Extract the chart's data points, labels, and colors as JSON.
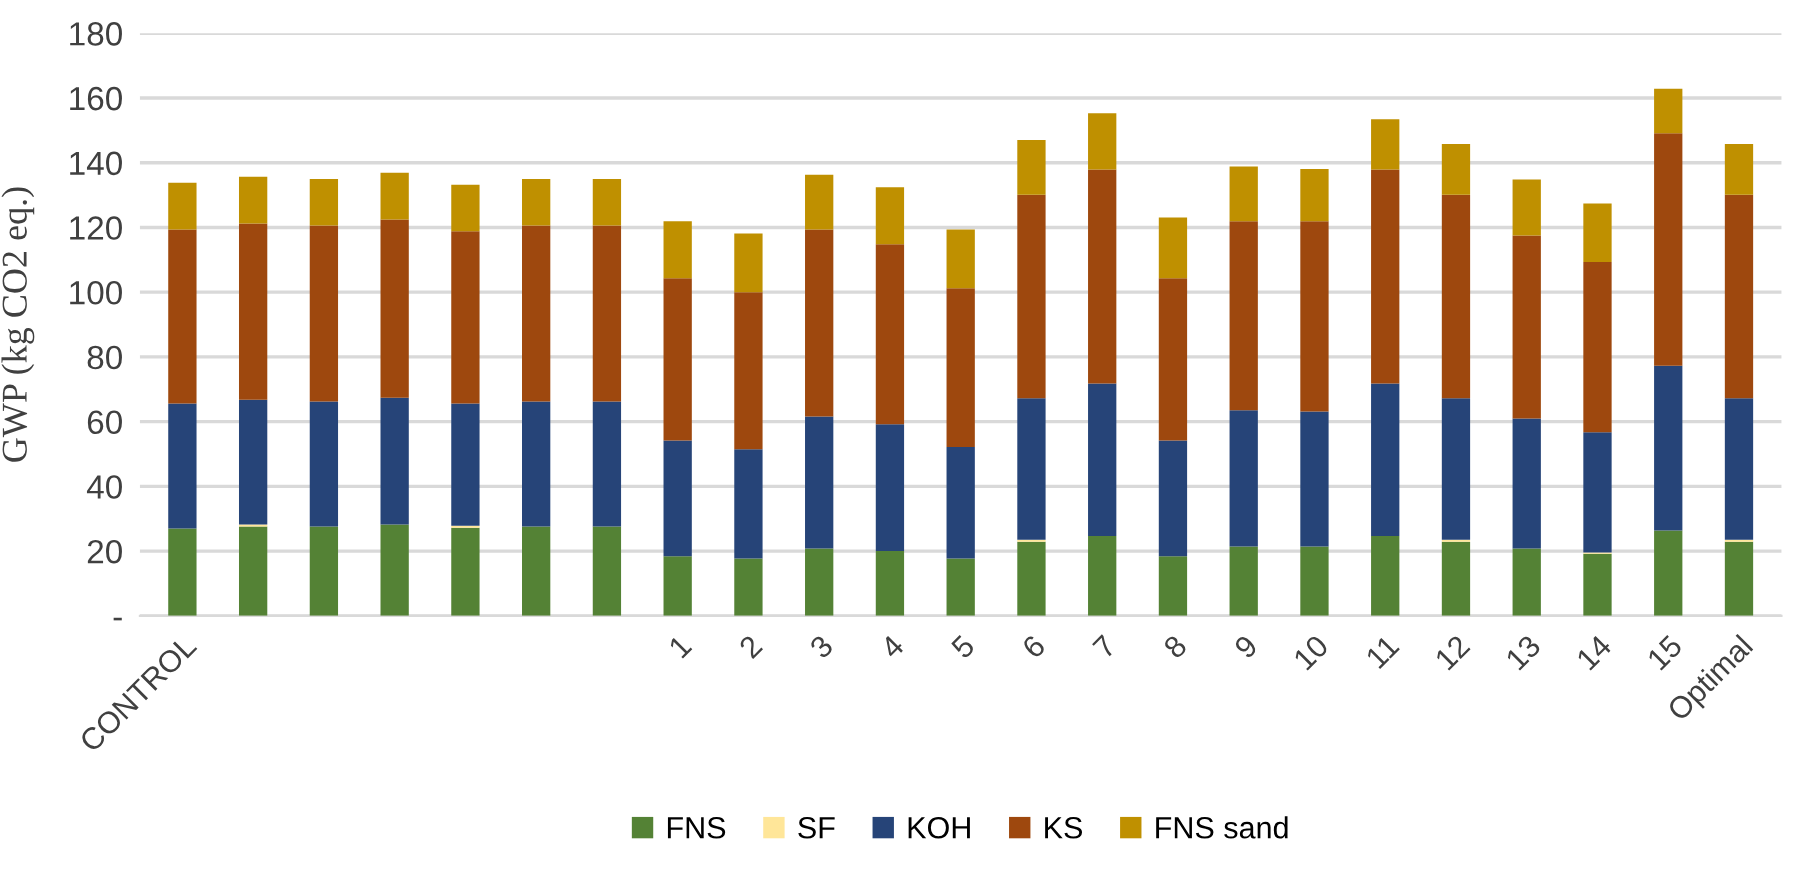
{
  "chart_data": {
    "type": "bar",
    "stacked": true,
    "ylabel": "GWP (kg CO2 eq.)",
    "categories": [
      "CONTROL",
      null,
      null,
      null,
      null,
      null,
      null,
      "1",
      "2",
      "3",
      "4",
      "5",
      "6",
      "7",
      "8",
      "9",
      "10",
      "11",
      "12",
      "13",
      "14",
      "15",
      "Optimal"
    ],
    "series": [
      {
        "name": "FNS",
        "color": "#548235",
        "values": [
          27.0,
          27.6,
          27.6,
          28.2,
          27.2,
          27.6,
          27.6,
          18.4,
          17.7,
          20.8,
          20.0,
          17.7,
          22.9,
          24.7,
          18.4,
          21.4,
          21.4,
          24.7,
          22.9,
          20.8,
          19.2,
          26.4,
          22.9
        ]
      },
      {
        "name": "SF",
        "color": "#ffe699",
        "values": [
          0,
          0.6,
          0,
          0,
          0.6,
          0,
          0,
          0,
          0,
          0,
          0,
          0,
          0.6,
          0,
          0,
          0,
          0,
          0,
          0.6,
          0,
          0.4,
          0,
          0.6
        ]
      },
      {
        "name": "KOH",
        "color": "#264478",
        "values": [
          38.6,
          38.6,
          38.6,
          39.2,
          37.8,
          38.6,
          38.6,
          35.8,
          33.8,
          40.8,
          39.2,
          34.5,
          43.7,
          47.1,
          35.8,
          42.1,
          41.7,
          47.1,
          43.7,
          40.2,
          37.1,
          50.9,
          43.7
        ]
      },
      {
        "name": "KS",
        "color": "#9e480e",
        "values": [
          53.8,
          54.4,
          54.4,
          55.1,
          53.2,
          54.4,
          54.4,
          50.1,
          48.5,
          57.8,
          55.6,
          49.0,
          62.9,
          66.1,
          50.1,
          58.4,
          58.8,
          66.1,
          62.9,
          56.5,
          52.6,
          71.8,
          62.9
        ]
      },
      {
        "name": "FNS sand",
        "color": "#bf9000",
        "values": [
          14.4,
          14.5,
          14.4,
          14.4,
          14.4,
          14.4,
          14.4,
          17.6,
          18.1,
          16.9,
          17.6,
          18.2,
          16.9,
          17.4,
          18.8,
          16.9,
          16.2,
          15.5,
          15.7,
          17.3,
          18.1,
          13.8,
          15.7
        ]
      }
    ],
    "ylim": [
      0,
      180
    ],
    "yticks": [
      {
        "value": 0,
        "label": "-"
      },
      20,
      40,
      60,
      80,
      100,
      120,
      140,
      160,
      180
    ],
    "grid": "y",
    "legend": "bottom"
  }
}
